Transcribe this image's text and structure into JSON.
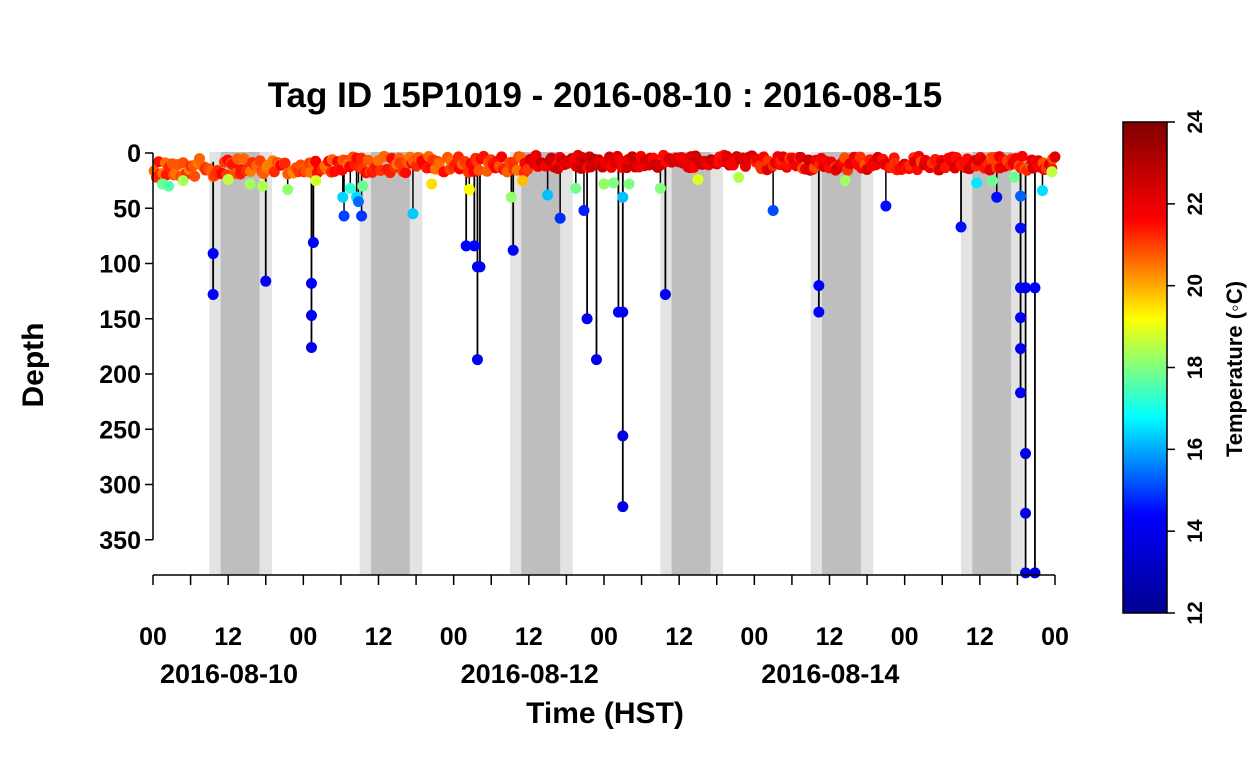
{
  "chart_data": {
    "type": "scatter",
    "title": "Tag ID 15P1019 - 2016-08-10 : 2016-08-15",
    "xlabel": "Time (HST)",
    "ylabel": "Depth",
    "colorbar_label": "Temperature (◦C)",
    "x_ticks": [
      "00",
      "12",
      "00",
      "12",
      "00",
      "12",
      "00",
      "12",
      "00",
      "12",
      "00",
      "12",
      "00"
    ],
    "date_labels": [
      "2016-08-10",
      "2016-08-12",
      "2016-08-14"
    ],
    "xlim_hours": [
      0,
      144
    ],
    "ylim": [
      380,
      0
    ],
    "y_ticks": [
      "0",
      "50",
      "100",
      "150",
      "200",
      "250",
      "300",
      "350"
    ],
    "colorbar": {
      "range": [
        12,
        24
      ],
      "ticks": [
        "12",
        "14",
        "16",
        "18",
        "20",
        "22",
        "24"
      ],
      "colors": [
        "#00008F",
        "#0000FF",
        "#00FFFF",
        "#FFFF00",
        "#FF0000",
        "#800000"
      ]
    },
    "night_shading": [
      {
        "twilight": [
          9,
          19
        ],
        "dark": [
          10.8,
          17
        ]
      },
      {
        "twilight": [
          33,
          43
        ],
        "dark": [
          34.8,
          41
        ]
      },
      {
        "twilight": [
          57,
          67
        ],
        "dark": [
          58.8,
          65
        ]
      },
      {
        "twilight": [
          81,
          91
        ],
        "dark": [
          82.8,
          89
        ]
      },
      {
        "twilight": [
          105,
          115
        ],
        "dark": [
          106.8,
          113
        ]
      },
      {
        "twilight": [
          129,
          139
        ],
        "dark": [
          130.8,
          137
        ]
      }
    ],
    "shading_colors": {
      "twilight": "#E3E3E3",
      "dark": "#BEBEBE"
    },
    "surface_band": [
      {
        "from": 0,
        "to": 24,
        "depth": [
          5,
          22
        ],
        "temp": [
          20.3,
          21.6
        ]
      },
      {
        "from": 24,
        "to": 60,
        "depth": [
          3,
          18
        ],
        "temp": [
          20.5,
          21.8
        ]
      },
      {
        "from": 60,
        "to": 96,
        "depth": [
          2,
          14
        ],
        "temp": [
          21.5,
          22.8
        ]
      },
      {
        "from": 96,
        "to": 144,
        "depth": [
          3,
          16
        ],
        "temp": [
          20.8,
          22.5
        ]
      }
    ],
    "shallow_points": [
      {
        "t": 1.5,
        "depth": 28,
        "temp": 17.8
      },
      {
        "t": 2.5,
        "depth": 30,
        "temp": 17.6
      },
      {
        "t": 4.8,
        "depth": 25,
        "temp": 18.4
      },
      {
        "t": 12,
        "depth": 24,
        "temp": 18.6
      },
      {
        "t": 15.5,
        "depth": 28,
        "temp": 18.3
      },
      {
        "t": 17.5,
        "depth": 30,
        "temp": 18.4
      },
      {
        "t": 21.5,
        "depth": 33,
        "temp": 18.2
      },
      {
        "t": 26,
        "depth": 25,
        "temp": 18.8
      },
      {
        "t": 30.3,
        "depth": 40,
        "temp": 16.4
      },
      {
        "t": 30.5,
        "depth": 57,
        "temp": 15.0
      },
      {
        "t": 31.5,
        "depth": 32,
        "temp": 17.2
      },
      {
        "t": 32.5,
        "depth": 40,
        "temp": 16.5
      },
      {
        "t": 32.8,
        "depth": 44,
        "temp": 15.4
      },
      {
        "t": 33.3,
        "depth": 57,
        "temp": 14.9
      },
      {
        "t": 33.5,
        "depth": 30,
        "temp": 17.8
      },
      {
        "t": 41.5,
        "depth": 55,
        "temp": 16.3
      },
      {
        "t": 44.5,
        "depth": 28,
        "temp": 19.5
      },
      {
        "t": 50.5,
        "depth": 33,
        "temp": 19.2
      },
      {
        "t": 57.2,
        "depth": 40,
        "temp": 18.2
      },
      {
        "t": 59,
        "depth": 25,
        "temp": 19.8
      },
      {
        "t": 63,
        "depth": 38,
        "temp": 16.2
      },
      {
        "t": 65,
        "depth": 59,
        "temp": 14.8
      },
      {
        "t": 67.5,
        "depth": 32,
        "temp": 17.9
      },
      {
        "t": 68.8,
        "depth": 52,
        "temp": 14.7
      },
      {
        "t": 72,
        "depth": 28,
        "temp": 18.2
      },
      {
        "t": 73.5,
        "depth": 27,
        "temp": 18.0
      },
      {
        "t": 75,
        "depth": 40,
        "temp": 16.2
      },
      {
        "t": 76,
        "depth": 28,
        "temp": 18.0
      },
      {
        "t": 81,
        "depth": 32,
        "temp": 18.0
      },
      {
        "t": 87,
        "depth": 24,
        "temp": 18.9
      },
      {
        "t": 93.5,
        "depth": 22,
        "temp": 18.5
      },
      {
        "t": 99,
        "depth": 52,
        "temp": 15.1
      },
      {
        "t": 110.5,
        "depth": 25,
        "temp": 18.3
      },
      {
        "t": 117,
        "depth": 48,
        "temp": 14.5
      },
      {
        "t": 131.5,
        "depth": 27,
        "temp": 16.6
      },
      {
        "t": 134,
        "depth": 25,
        "temp": 17.8
      },
      {
        "t": 134.7,
        "depth": 40,
        "temp": 14.5
      },
      {
        "t": 137.5,
        "depth": 22,
        "temp": 17.8
      },
      {
        "t": 138.5,
        "depth": 39,
        "temp": 15.3
      },
      {
        "t": 142,
        "depth": 34,
        "temp": 16.5
      },
      {
        "t": 143.5,
        "depth": 17,
        "temp": 18.6
      }
    ],
    "dives": [
      {
        "t": 9.6,
        "points": [
          {
            "depth": 91,
            "temp": 14.3
          },
          {
            "depth": 128,
            "temp": 14.2
          }
        ]
      },
      {
        "t": 18.0,
        "points": [
          {
            "depth": 116,
            "temp": 14.3
          }
        ]
      },
      {
        "t": 25.3,
        "points": [
          {
            "depth": 118,
            "temp": 14.3
          },
          {
            "depth": 147,
            "temp": 14.2
          },
          {
            "depth": 176,
            "temp": 14.1
          }
        ]
      },
      {
        "t": 25.6,
        "points": [
          {
            "depth": 81,
            "temp": 14.4
          }
        ]
      },
      {
        "t": 50.0,
        "points": [
          {
            "depth": 84,
            "temp": 14.4
          }
        ]
      },
      {
        "t": 51.3,
        "points": [
          {
            "depth": 84,
            "temp": 14.4
          }
        ]
      },
      {
        "t": 51.8,
        "points": [
          {
            "depth": 103,
            "temp": 14.3
          },
          {
            "depth": 187,
            "temp": 14.1
          }
        ]
      },
      {
        "t": 52.2,
        "points": [
          {
            "depth": 103,
            "temp": 14.3
          }
        ]
      },
      {
        "t": 57.5,
        "points": [
          {
            "depth": 88,
            "temp": 14.4
          }
        ]
      },
      {
        "t": 69.3,
        "points": [
          {
            "depth": 150,
            "temp": 14.2
          }
        ]
      },
      {
        "t": 70.8,
        "points": [
          {
            "depth": 187,
            "temp": 14.1
          }
        ]
      },
      {
        "t": 74.3,
        "points": [
          {
            "depth": 144,
            "temp": 14.2
          }
        ]
      },
      {
        "t": 75.0,
        "points": [
          {
            "depth": 144,
            "temp": 14.2
          },
          {
            "depth": 256,
            "temp": 13.9
          },
          {
            "depth": 320,
            "temp": 13.8
          }
        ]
      },
      {
        "t": 81.8,
        "points": [
          {
            "depth": 128,
            "temp": 14.2
          }
        ]
      },
      {
        "t": 106.3,
        "points": [
          {
            "depth": 120,
            "temp": 14.3
          },
          {
            "depth": 144,
            "temp": 14.2
          }
        ]
      },
      {
        "t": 129.0,
        "points": [
          {
            "depth": 67,
            "temp": 14.5
          }
        ]
      },
      {
        "t": 138.5,
        "points": [
          {
            "depth": 68,
            "temp": 14.5
          },
          {
            "depth": 122,
            "temp": 14.2
          },
          {
            "depth": 149,
            "temp": 14.2
          },
          {
            "depth": 177,
            "temp": 14.1
          },
          {
            "depth": 217,
            "temp": 14.0
          }
        ]
      },
      {
        "t": 139.3,
        "points": [
          {
            "depth": 122,
            "temp": 14.2
          },
          {
            "depth": 272,
            "temp": 13.9
          },
          {
            "depth": 326,
            "temp": 13.8
          },
          {
            "depth": 380,
            "temp": 13.6
          }
        ]
      },
      {
        "t": 140.8,
        "points": [
          {
            "depth": 122,
            "temp": 14.2
          },
          {
            "depth": 380,
            "temp": 13.6
          }
        ]
      }
    ]
  }
}
